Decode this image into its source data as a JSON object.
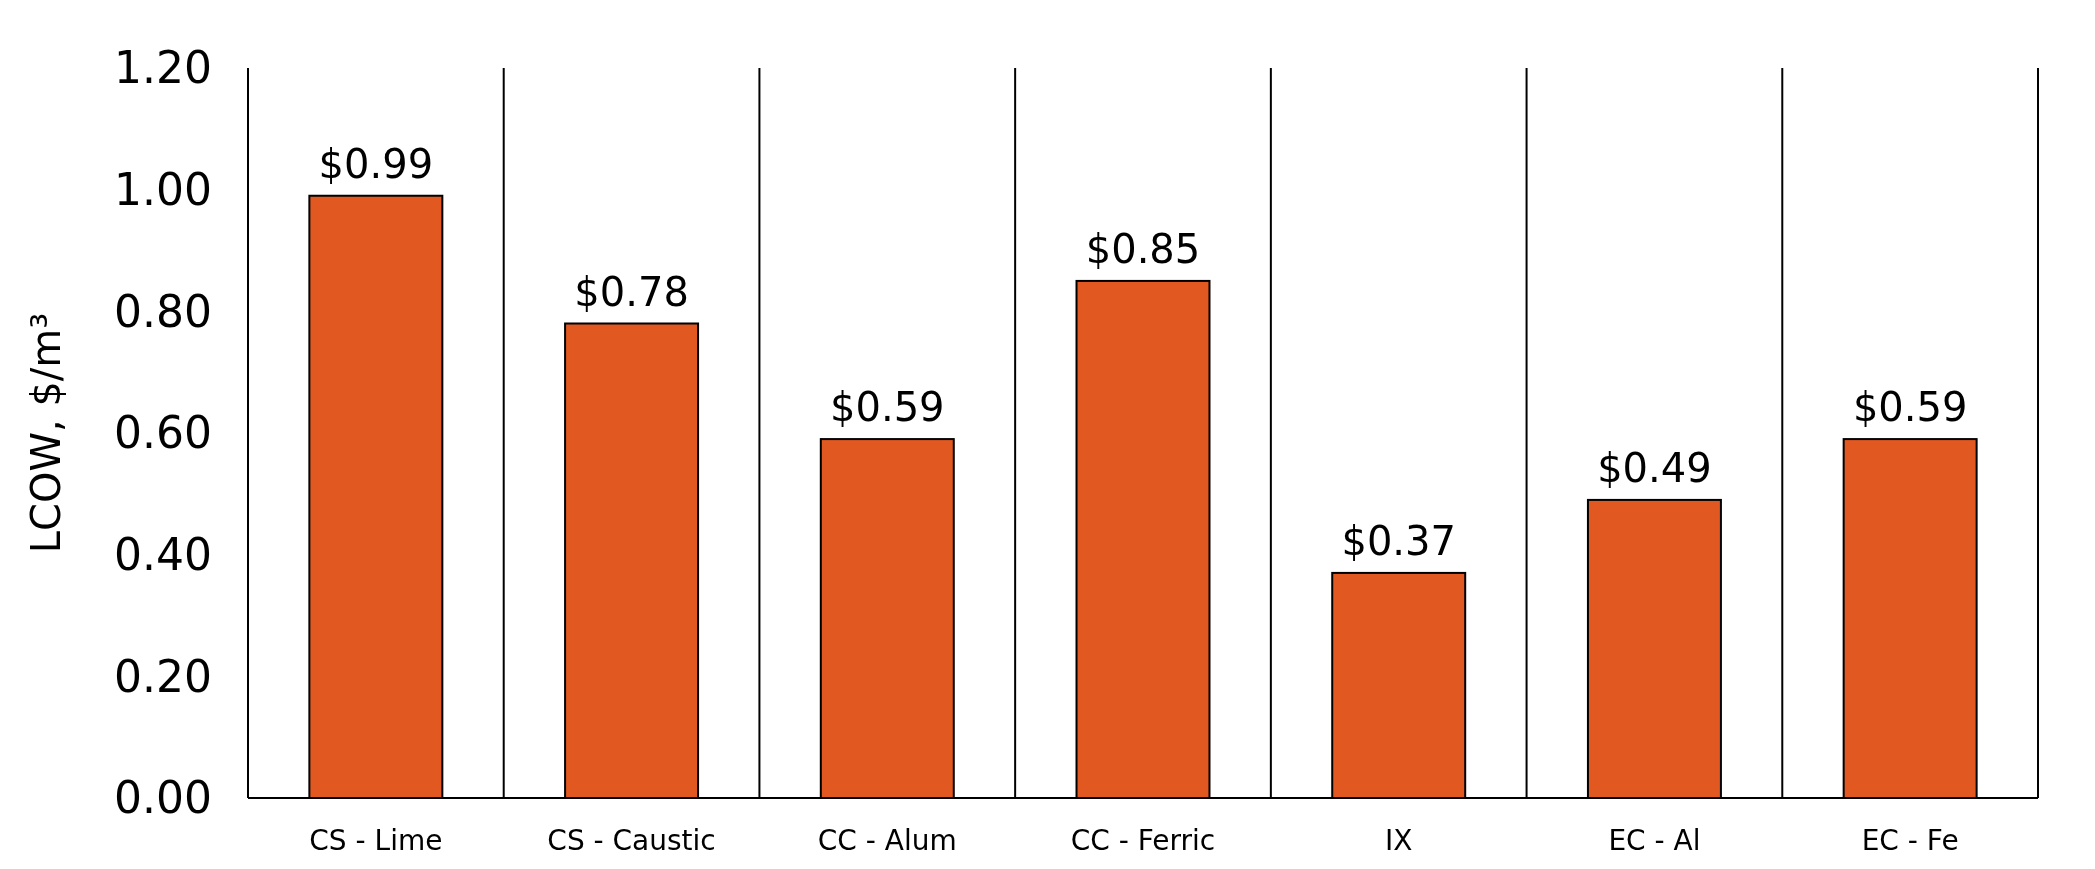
{
  "chart_data": {
    "type": "bar",
    "ylabel": "LCOW, $/m³",
    "categories": [
      "CS - Lime",
      "CS - Caustic",
      "CC - Alum",
      "CC - Ferric",
      "IX",
      "EC - Al",
      "EC - Fe"
    ],
    "values": [
      0.99,
      0.78,
      0.59,
      0.85,
      0.37,
      0.49,
      0.59
    ],
    "value_labels": [
      "$0.99",
      "$0.78",
      "$0.59",
      "$0.85",
      "$0.37",
      "$0.49",
      "$0.59"
    ],
    "color": "#e15820",
    "ylim": [
      0,
      1.2
    ],
    "yticks": [
      {
        "value": 0,
        "label": "0.00"
      },
      {
        "value": 0.2,
        "label": "0.20"
      },
      {
        "value": 0.4,
        "label": "0.40"
      },
      {
        "value": 0.6,
        "label": "0.60"
      },
      {
        "value": 0.8,
        "label": "0.80"
      },
      {
        "value": 1.0,
        "label": "1.00"
      },
      {
        "value": 1.2,
        "label": "1.20"
      }
    ],
    "grid": "x"
  }
}
